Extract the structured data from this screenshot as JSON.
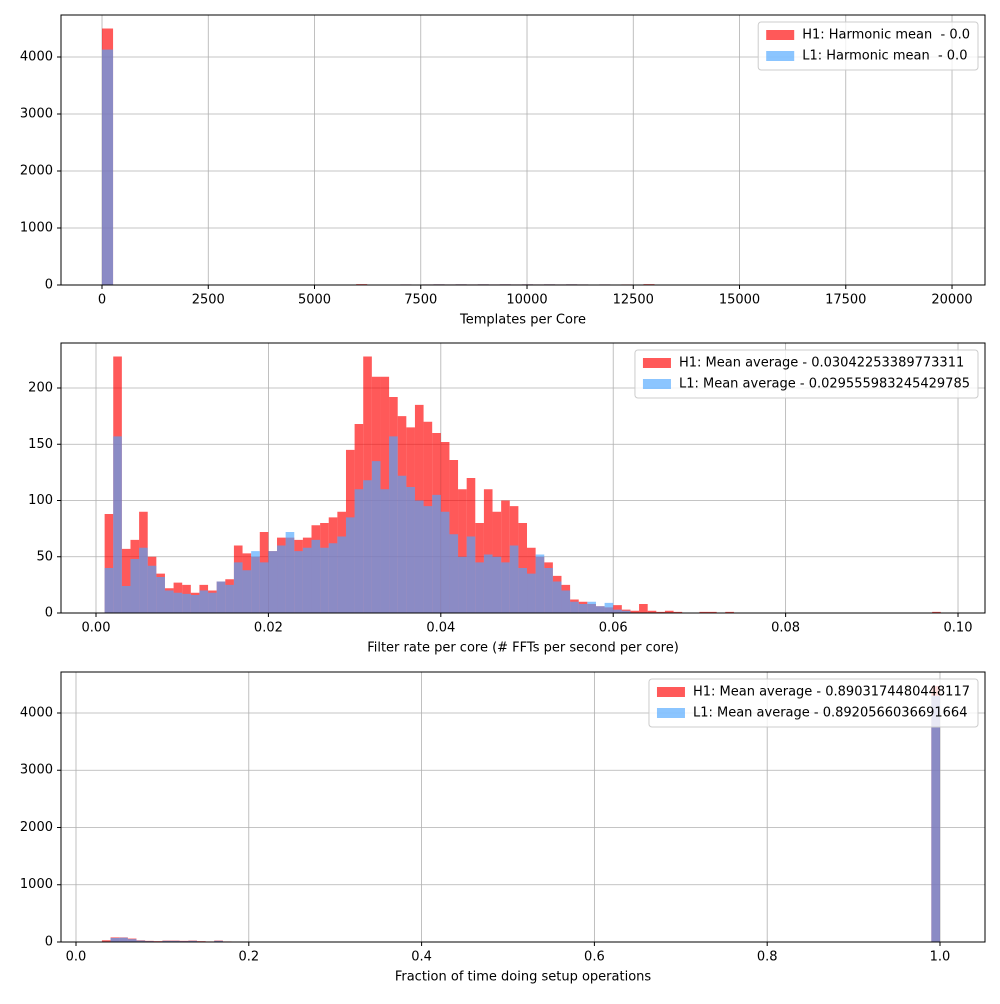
{
  "chart_data": [
    {
      "type": "histogram",
      "xlabel": "Templates per Core",
      "bins": [
        0,
        260,
        520,
        780,
        1040,
        1300,
        1560,
        1820,
        2080,
        2340,
        2600,
        2860,
        3120,
        3380,
        3640,
        3900,
        4160,
        4420,
        4680,
        4940,
        5200,
        5460,
        5720,
        5980,
        6240,
        6500,
        6760,
        7020,
        7280,
        7540,
        7800,
        8060,
        8320,
        8580,
        8840,
        9100,
        9360,
        9620,
        9880,
        10140,
        10400,
        10660,
        10920,
        11180,
        11440,
        11700,
        11960,
        12220,
        12480,
        12740,
        13000
      ],
      "series": [
        {
          "name": "H1: Harmonic mean  - 0.0",
          "color": "red",
          "values": [
            4500,
            0,
            0,
            0,
            0,
            0,
            0,
            0,
            0,
            0,
            0,
            0,
            0,
            0,
            0,
            0,
            0,
            0,
            0,
            0,
            0,
            0,
            0,
            15,
            0,
            5,
            8,
            10,
            8,
            10,
            12,
            10,
            12,
            10,
            12,
            10,
            12,
            10,
            12,
            10,
            12,
            10,
            12,
            10,
            8,
            10,
            8,
            10,
            6,
            15
          ]
        },
        {
          "name": "L1: Harmonic mean  - 0.0",
          "color": "#4da6ff",
          "values": [
            4130,
            0,
            0,
            0,
            0,
            0,
            0,
            0,
            0,
            0,
            0,
            0,
            0,
            0,
            0,
            0,
            0,
            0,
            0,
            0,
            0,
            0,
            0,
            0,
            0,
            6,
            8,
            10,
            8,
            10,
            12,
            10,
            12,
            10,
            12,
            10,
            12,
            10,
            12,
            10,
            12,
            10,
            12,
            10,
            8,
            10,
            0,
            0,
            0,
            0
          ]
        }
      ],
      "xlim": [
        -965,
        20776
      ],
      "ylim": [
        0,
        4737
      ],
      "xticks": [
        0,
        2500,
        5000,
        7500,
        10000,
        12500,
        15000,
        17500,
        20000
      ],
      "yticks": [
        0,
        1000,
        2000,
        3000,
        4000
      ],
      "grid": true,
      "legend": "upper right",
      "alpha": 0.65
    },
    {
      "type": "histogram",
      "xlabel": "Filter rate per core (# FFTs per second per core)",
      "bins": [
        0.001,
        0.002,
        0.003,
        0.004,
        0.005,
        0.006,
        0.007,
        0.008,
        0.009,
        0.01,
        0.011,
        0.012,
        0.013,
        0.014,
        0.015,
        0.016,
        0.017,
        0.018,
        0.019,
        0.02,
        0.021,
        0.022,
        0.023,
        0.024,
        0.025,
        0.026,
        0.027,
        0.028,
        0.029,
        0.03,
        0.031,
        0.032,
        0.033,
        0.034,
        0.035,
        0.036,
        0.037,
        0.038,
        0.039,
        0.04,
        0.041,
        0.042,
        0.043,
        0.044,
        0.045,
        0.046,
        0.047,
        0.048,
        0.049,
        0.05,
        0.051,
        0.052,
        0.053,
        0.054,
        0.055,
        0.056,
        0.057,
        0.058,
        0.059,
        0.06,
        0.061,
        0.062,
        0.063,
        0.064,
        0.065,
        0.066,
        0.067,
        0.068,
        0.069,
        0.07,
        0.071,
        0.072,
        0.073,
        0.074,
        0.075,
        0.076,
        0.077,
        0.078,
        0.079,
        0.08,
        0.081,
        0.082,
        0.083,
        0.084,
        0.085,
        0.086,
        0.087,
        0.088,
        0.089,
        0.09,
        0.091,
        0.092,
        0.093,
        0.094,
        0.095,
        0.096,
        0.097,
        0.098,
        0.099
      ],
      "series": [
        {
          "name": "H1: Mean average - 0.03042253389773311",
          "color": "red",
          "values": [
            88,
            228,
            57,
            65,
            90,
            50,
            35,
            22,
            27,
            25,
            18,
            25,
            20,
            28,
            30,
            60,
            53,
            50,
            72,
            55,
            67,
            67,
            65,
            67,
            78,
            80,
            85,
            90,
            145,
            168,
            228,
            210,
            210,
            192,
            175,
            165,
            185,
            170,
            160,
            152,
            136,
            110,
            120,
            80,
            110,
            90,
            100,
            95,
            80,
            58,
            50,
            45,
            33,
            25,
            12,
            10,
            8,
            6,
            5,
            7,
            3,
            2,
            8,
            2,
            1,
            2,
            1,
            0,
            0,
            1,
            1,
            0,
            1,
            0,
            0,
            0,
            0,
            0,
            0,
            0,
            0,
            0,
            0,
            0,
            0,
            0,
            0,
            0,
            0,
            0,
            0,
            0,
            0,
            0,
            0,
            0,
            1,
            0
          ]
        },
        {
          "name": "L1: Mean average - 0.029555983245429785",
          "color": "#4da6ff",
          "values": [
            40,
            157,
            24,
            48,
            58,
            42,
            32,
            20,
            18,
            17,
            16,
            20,
            18,
            28,
            25,
            45,
            38,
            55,
            45,
            55,
            60,
            72,
            55,
            58,
            65,
            58,
            62,
            68,
            85,
            110,
            118,
            135,
            110,
            157,
            122,
            112,
            100,
            95,
            105,
            90,
            70,
            50,
            68,
            45,
            52,
            50,
            45,
            60,
            40,
            35,
            52,
            40,
            28,
            20,
            10,
            8,
            10,
            6,
            9,
            3,
            2,
            0,
            0,
            0,
            0,
            0,
            0,
            0,
            0,
            0,
            0,
            0,
            0,
            0,
            0,
            0,
            0,
            0,
            0,
            0,
            0,
            0,
            0,
            0,
            0,
            0,
            0,
            0,
            0,
            0,
            0,
            0,
            0,
            0,
            0,
            0,
            0,
            0
          ]
        }
      ],
      "xlim": [
        -0.00406,
        0.10313
      ],
      "ylim": [
        0,
        240
      ],
      "xticks": [
        {
          "value": 0,
          "label": "0.00"
        },
        0.02,
        0.04,
        0.06,
        0.08,
        {
          "value": 0.1,
          "label": "0.10"
        }
      ],
      "yticks": [
        0,
        50,
        100,
        150,
        200
      ],
      "grid": true,
      "legend": "upper right",
      "alpha": 0.65
    },
    {
      "type": "histogram",
      "xlabel": "Fraction of time doing setup operations",
      "bins": [
        0.03,
        0.04,
        0.05,
        0.06,
        0.07,
        0.08,
        0.09,
        0.1,
        0.11,
        0.12,
        0.13,
        0.14,
        0.15,
        0.16,
        0.17,
        0.18,
        0.19,
        0.2,
        0.21,
        0.22,
        0.23,
        0.24,
        0.25,
        0.26,
        0.27,
        0.28,
        0.29,
        0.3,
        0.31,
        0.32,
        0.33,
        0.34,
        0.35,
        0.36,
        0.37,
        0.38,
        0.39,
        0.4,
        0.41,
        0.42,
        0.43,
        0.44,
        0.45,
        0.46,
        0.47,
        0.48,
        0.49,
        0.5,
        0.51,
        0.52,
        0.53,
        0.54,
        0.55,
        0.56,
        0.57,
        0.58,
        0.59,
        0.6,
        0.61,
        0.62,
        0.63,
        0.64,
        0.65,
        0.66,
        0.67,
        0.68,
        0.69,
        0.7,
        0.71,
        0.72,
        0.73,
        0.74,
        0.75,
        0.76,
        0.77,
        0.78,
        0.79,
        0.8,
        0.81,
        0.82,
        0.83,
        0.84,
        0.85,
        0.86,
        0.87,
        0.88,
        0.89,
        0.9,
        0.91,
        0.92,
        0.93,
        0.94,
        0.95,
        0.96,
        0.97,
        0.98,
        0.99,
        1.0
      ],
      "series": [
        {
          "name": "H1: Mean average - 0.8903174480448117",
          "color": "red",
          "values": [
            30,
            80,
            80,
            60,
            30,
            20,
            15,
            25,
            25,
            20,
            25,
            15,
            10,
            25,
            10,
            8,
            5,
            5,
            5,
            5,
            5,
            5,
            5,
            5,
            0,
            0,
            0,
            0,
            0,
            0,
            0,
            0,
            0,
            0,
            0,
            0,
            0,
            0,
            0,
            0,
            0,
            0,
            0,
            0,
            0,
            0,
            0,
            0,
            0,
            0,
            0,
            0,
            0,
            0,
            0,
            0,
            0,
            0,
            0,
            0,
            0,
            0,
            0,
            0,
            0,
            0,
            0,
            0,
            0,
            0,
            0,
            0,
            0,
            0,
            0,
            0,
            0,
            0,
            0,
            0,
            0,
            0,
            0,
            0,
            0,
            0,
            0,
            0,
            0,
            0,
            0,
            0,
            0,
            0,
            0,
            0,
            4470
          ]
        },
        {
          "name": "L1: Mean average - 0.8920566036691664",
          "color": "#4da6ff",
          "values": [
            10,
            70,
            75,
            50,
            25,
            15,
            10,
            20,
            20,
            15,
            20,
            10,
            8,
            20,
            8,
            5,
            4,
            4,
            4,
            4,
            4,
            4,
            4,
            4,
            0,
            0,
            0,
            0,
            0,
            0,
            0,
            0,
            0,
            0,
            0,
            0,
            0,
            0,
            0,
            0,
            0,
            0,
            0,
            0,
            0,
            0,
            0,
            0,
            0,
            0,
            0,
            0,
            0,
            0,
            0,
            0,
            0,
            0,
            0,
            0,
            0,
            0,
            0,
            0,
            0,
            0,
            0,
            0,
            0,
            0,
            0,
            0,
            0,
            0,
            0,
            0,
            0,
            0,
            0,
            0,
            0,
            0,
            0,
            0,
            0,
            0,
            0,
            0,
            0,
            0,
            0,
            0,
            0,
            0,
            0,
            0,
            4300
          ]
        }
      ],
      "xlim": [
        -0.01736,
        1.0521
      ],
      "ylim": [
        0,
        4716
      ],
      "xticks": [
        {
          "value": 0,
          "label": "0.0"
        },
        0.2,
        0.4,
        0.6,
        0.8,
        {
          "value": 1,
          "label": "1.0"
        }
      ],
      "yticks": [
        0,
        1000,
        2000,
        3000,
        4000
      ],
      "grid": true,
      "legend": "upper right",
      "alpha": 0.65
    }
  ]
}
